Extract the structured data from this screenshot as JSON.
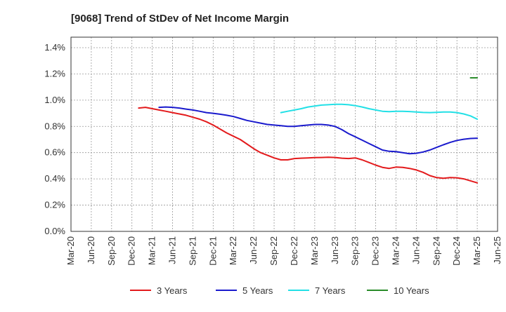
{
  "chart_data": {
    "type": "line",
    "title": "[9068]  Trend of StDev of Net Income Margin",
    "xlabel": "",
    "ylabel": "",
    "x_tick_labels": [
      "Mar-20",
      "Jun-20",
      "Sep-20",
      "Dec-20",
      "Mar-21",
      "Jun-21",
      "Sep-21",
      "Dec-21",
      "Mar-22",
      "Jun-22",
      "Sep-22",
      "Dec-22",
      "Mar-23",
      "Jun-23",
      "Sep-23",
      "Dec-23",
      "Mar-24",
      "Jun-24",
      "Sep-24",
      "Dec-24",
      "Mar-25",
      "Jun-25"
    ],
    "y_ticks": [
      0,
      0.2,
      0.4,
      0.6,
      0.8,
      1.0,
      1.2,
      1.4
    ],
    "y_tick_labels": [
      "0.0%",
      "0.2%",
      "0.4%",
      "0.6%",
      "0.8%",
      "1.0%",
      "1.2%",
      "1.4%"
    ],
    "ylim": [
      0,
      1.48
    ],
    "grid": true,
    "legend_position": "bottom",
    "series": [
      {
        "name": "3 Years",
        "color": "#e31a1c",
        "values": [
          0.94,
          0.945,
          0.935,
          0.925,
          0.915,
          0.905,
          0.895,
          0.885,
          0.87,
          0.855,
          0.835,
          0.81,
          0.78,
          0.75,
          0.725,
          0.7,
          0.665,
          0.63,
          0.6,
          0.58,
          0.56,
          0.545,
          0.545,
          0.555,
          0.558,
          0.56,
          0.562,
          0.563,
          0.565,
          0.563,
          0.558,
          0.555,
          0.56,
          0.545,
          0.525,
          0.505,
          0.488,
          0.48,
          0.49,
          0.488,
          0.48,
          0.468,
          0.45,
          0.425,
          0.41,
          0.405,
          0.41,
          0.408,
          0.4,
          0.385,
          0.37
        ]
      },
      {
        "name": "5 Years",
        "color": "#1a1acd",
        "values": [
          0.945,
          0.948,
          0.945,
          0.94,
          0.932,
          0.925,
          0.915,
          0.905,
          0.9,
          0.893,
          0.885,
          0.875,
          0.86,
          0.845,
          0.835,
          0.825,
          0.815,
          0.81,
          0.805,
          0.8,
          0.8,
          0.805,
          0.81,
          0.815,
          0.815,
          0.81,
          0.8,
          0.775,
          0.745,
          0.72,
          0.695,
          0.67,
          0.645,
          0.62,
          0.61,
          0.608,
          0.6,
          0.592,
          0.595,
          0.605,
          0.62,
          0.64,
          0.66,
          0.678,
          0.693,
          0.702,
          0.708,
          0.71
        ]
      },
      {
        "name": "7 Years",
        "color": "#22e0e6",
        "values": [
          0.905,
          0.915,
          0.925,
          0.935,
          0.948,
          0.955,
          0.962,
          0.965,
          0.968,
          0.968,
          0.965,
          0.958,
          0.948,
          0.935,
          0.925,
          0.915,
          0.912,
          0.915,
          0.915,
          0.913,
          0.91,
          0.906,
          0.905,
          0.907,
          0.91,
          0.91,
          0.905,
          0.895,
          0.88,
          0.855
        ]
      },
      {
        "name": "10 Years",
        "color": "#2a8c2a",
        "values": [
          1.17,
          1.17
        ]
      }
    ]
  }
}
